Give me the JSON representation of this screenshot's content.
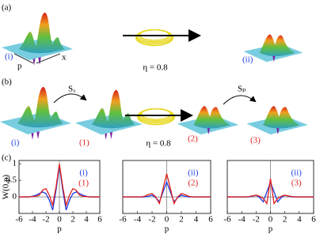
{
  "labels": {
    "a": "(a)",
    "b": "(b)",
    "c": "(c)",
    "a_i": "(i)",
    "a_ii": "(ii)",
    "axis_p": "p",
    "axis_x": "x",
    "eta_a": "η = 0.8",
    "eta_b": "η = 0.8",
    "b_i": "(i)",
    "b_1": "(1)",
    "b_2": "(2)",
    "b_3": "(3)",
    "sx": "Sₓ",
    "sp": "Sₚ"
  },
  "chart_data": [
    {
      "type": "line",
      "xlabel": "p",
      "ylabel": "W(0,p)",
      "xlim": [
        -6,
        6
      ],
      "ylim": [
        -0.5,
        1.1
      ],
      "xticks": [
        -6,
        -4,
        -2,
        0,
        2,
        4,
        6
      ],
      "yticks": [
        0,
        0.5,
        1
      ],
      "x": [
        -6,
        -5.5,
        -5,
        -4.5,
        -4,
        -3.5,
        -3,
        -2.5,
        -2,
        -1.5,
        -1,
        -0.5,
        0,
        0.5,
        1,
        1.5,
        2,
        2.5,
        3,
        3.5,
        4,
        4.5,
        5,
        5.5,
        6
      ],
      "series": [
        {
          "name": "(i)",
          "color": "#1f3fe0",
          "values": [
            0,
            0,
            0,
            0,
            0.02,
            0.05,
            0.1,
            0.15,
            0.1,
            -0.1,
            -0.4,
            0.2,
            0.95,
            0.2,
            -0.4,
            -0.1,
            0.1,
            0.15,
            0.1,
            0.05,
            0.02,
            0,
            0,
            0,
            0
          ]
        },
        {
          "name": "(1)",
          "color": "#e01f1f",
          "values": [
            0,
            0,
            0,
            0,
            0.01,
            0.02,
            0.05,
            0.2,
            0.25,
            0.05,
            -0.25,
            0.3,
            1.0,
            0.3,
            -0.25,
            0.05,
            0.25,
            0.2,
            0.05,
            0.02,
            0.01,
            0,
            0,
            0,
            0
          ]
        }
      ]
    },
    {
      "type": "line",
      "xlabel": "p",
      "xlim": [
        -6,
        6
      ],
      "ylim": [
        -0.5,
        1.1
      ],
      "xticks": [
        -6,
        -4,
        -2,
        0,
        2,
        4,
        6
      ],
      "x": [
        -6,
        -5.5,
        -5,
        -4.5,
        -4,
        -3.5,
        -3,
        -2.5,
        -2,
        -1.5,
        -1,
        -0.5,
        0,
        0.5,
        1,
        1.5,
        2,
        2.5,
        3,
        3.5,
        4,
        4.5,
        5,
        5.5,
        6
      ],
      "series": [
        {
          "name": "(ii)",
          "color": "#1f3fe0",
          "values": [
            0,
            0,
            0,
            0,
            0,
            0,
            0,
            0.02,
            0.05,
            -0.02,
            -0.15,
            0.15,
            0.45,
            0.15,
            -0.15,
            -0.02,
            0.05,
            0.02,
            0,
            0,
            0,
            0,
            0,
            0,
            0
          ]
        },
        {
          "name": "(2)",
          "color": "#e01f1f",
          "values": [
            0,
            0,
            0,
            0,
            0,
            0,
            0.02,
            0.07,
            0.1,
            0,
            -0.2,
            0.25,
            0.7,
            0.25,
            -0.2,
            0,
            0.1,
            0.07,
            0.02,
            0,
            0,
            0,
            0,
            0,
            0
          ]
        }
      ]
    },
    {
      "type": "line",
      "xlabel": "p",
      "xlim": [
        -6,
        6
      ],
      "ylim": [
        -0.5,
        1.1
      ],
      "xticks": [
        -6,
        -4,
        -2,
        0,
        2,
        4,
        6
      ],
      "x": [
        -6,
        -5.5,
        -5,
        -4.5,
        -4,
        -3.5,
        -3,
        -2.5,
        -2,
        -1.5,
        -1,
        -0.5,
        0,
        0.5,
        1,
        1.5,
        2,
        2.5,
        3,
        3.5,
        4,
        4.5,
        5,
        5.5,
        6
      ],
      "series": [
        {
          "name": "(ii)",
          "color": "#1f3fe0",
          "values": [
            0,
            0,
            0,
            0,
            0,
            0,
            0,
            0.02,
            0.05,
            -0.02,
            -0.15,
            0.15,
            0.45,
            0.15,
            -0.15,
            -0.02,
            0.05,
            0.02,
            0,
            0,
            0,
            0,
            0,
            0,
            0
          ]
        },
        {
          "name": "(3)",
          "color": "#e01f1f",
          "values": [
            0,
            0,
            0,
            0,
            0,
            0,
            0.01,
            0.03,
            0.05,
            0.02,
            -0.05,
            -0.2,
            0.55,
            -0.2,
            -0.05,
            0.02,
            0.05,
            0.03,
            0.01,
            0,
            0,
            0,
            0,
            0,
            0
          ]
        }
      ]
    }
  ]
}
